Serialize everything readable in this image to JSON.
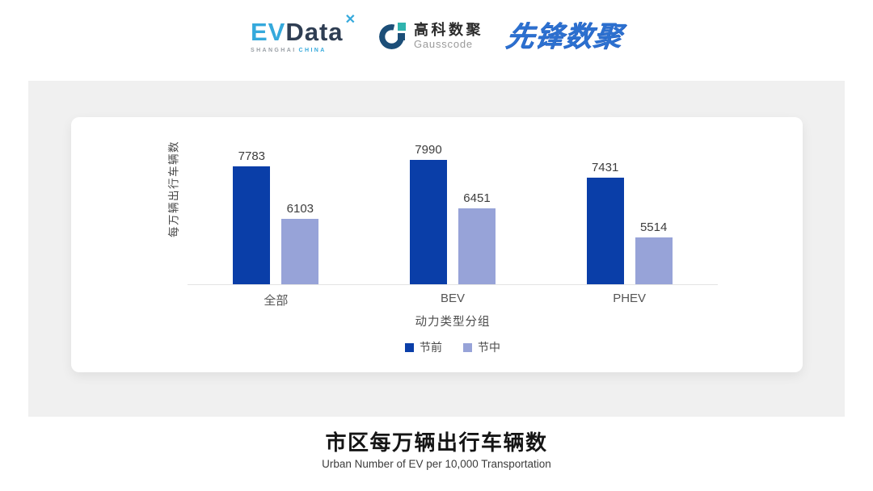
{
  "header": {
    "evdata": {
      "ev": "EV",
      "data": "Data",
      "mark": "✕",
      "sub_left": "SHANGHAI",
      "sub_right": "CHINA"
    },
    "gausscode": {
      "name_cn": "高科数聚",
      "name_en": "Gausscode"
    },
    "pioneer": {
      "name": "先锋数聚"
    }
  },
  "chart_data": {
    "type": "bar",
    "title": "市区每万辆出行车辆数",
    "categories": [
      "全部",
      "BEV",
      "PHEV"
    ],
    "series": [
      {
        "name": "节前",
        "color": "#0A3EA8",
        "values": [
          7783,
          7990,
          7431
        ]
      },
      {
        "name": "节中",
        "color": "#97A3D8",
        "values": [
          6103,
          6451,
          5514
        ]
      }
    ],
    "xlabel": "动力类型分组",
    "ylabel": "每万辆出行车辆数",
    "ylim": [
      4000,
      8200
    ],
    "grid": false,
    "legend_position": "bottom",
    "value_labels": true
  },
  "footer": {
    "title": "市区每万辆出行车辆数",
    "subtitle": "Urban Number of EV per 10,000 Transportation"
  }
}
